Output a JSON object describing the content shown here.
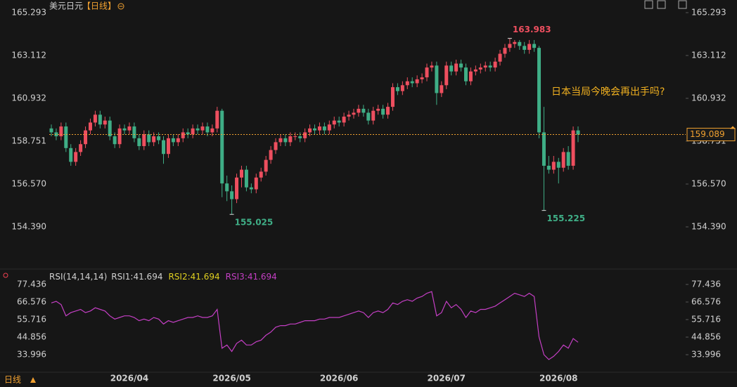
{
  "chart_data": {
    "type": "candlestick",
    "title": "美元日元",
    "period": "【日线】",
    "annotation": "日本当局今晚会再出手吗?",
    "bottom_label": "日线",
    "rsi_labels": {
      "params": "RSI(14,14,14)",
      "rsi1": "RSI1:41.694",
      "rsi2": "RSI2:41.694",
      "rsi3": "RSI3:41.694"
    },
    "up_color": "#ee4f5f",
    "down_color": "#3fae86",
    "price_line_color": "#f0a030",
    "categories": [
      null,
      null,
      null,
      null,
      null,
      null,
      null,
      null,
      null,
      null,
      null,
      null,
      null,
      null,
      null,
      null,
      "2026/04",
      null,
      null,
      null,
      null,
      null,
      null,
      null,
      null,
      null,
      null,
      null,
      null,
      null,
      null,
      null,
      null,
      null,
      null,
      null,
      null,
      "2026/05",
      null,
      null,
      null,
      null,
      null,
      null,
      null,
      null,
      null,
      null,
      null,
      null,
      null,
      null,
      null,
      null,
      null,
      null,
      null,
      null,
      null,
      "2026/06",
      null,
      null,
      null,
      null,
      null,
      null,
      null,
      null,
      null,
      null,
      null,
      null,
      null,
      null,
      null,
      null,
      null,
      null,
      null,
      null,
      null,
      "2026/07",
      null,
      null,
      null,
      null,
      null,
      null,
      null,
      null,
      null,
      null,
      null,
      null,
      null,
      null,
      null,
      null,
      null,
      null,
      null,
      null,
      null,
      null,
      "2026/08",
      null,
      null,
      null,
      null
    ],
    "open": [
      159.4,
      159.2,
      159.0,
      159.5,
      158.4,
      157.7,
      158.2,
      158.6,
      159.3,
      159.7,
      160.1,
      159.6,
      159.8,
      159.0,
      158.6,
      159.4,
      159.3,
      159.5,
      158.9,
      158.5,
      159.1,
      158.7,
      159.0,
      158.8,
      158.1,
      158.9,
      158.7,
      158.9,
      159.2,
      159.1,
      159.4,
      159.3,
      159.5,
      159.2,
      159.4,
      160.3,
      156.6,
      156.2,
      155.8,
      156.9,
      157.3,
      156.4,
      156.3,
      156.9,
      157.2,
      157.8,
      158.3,
      158.7,
      158.9,
      158.7,
      159.0,
      159.0,
      158.9,
      159.2,
      159.4,
      159.3,
      159.5,
      159.3,
      159.6,
      159.8,
      159.7,
      160.0,
      160.1,
      160.2,
      160.4,
      160.2,
      159.8,
      160.3,
      160.4,
      160.1,
      160.5,
      161.5,
      161.3,
      161.6,
      161.8,
      161.7,
      161.9,
      162.0,
      162.5,
      162.6,
      161.2,
      161.6,
      162.6,
      162.3,
      162.7,
      162.5,
      161.8,
      162.3,
      162.4,
      162.5,
      162.6,
      162.5,
      162.8,
      163.2,
      163.5,
      163.7,
      163.8,
      163.6,
      163.4,
      163.7,
      163.5,
      159.2,
      157.5,
      157.3,
      157.7,
      157.4,
      158.2,
      157.5,
      159.3
    ],
    "high": [
      159.6,
      159.4,
      159.7,
      159.7,
      158.6,
      158.4,
      158.8,
      159.5,
      159.9,
      160.3,
      160.3,
      160.0,
      160.0,
      159.2,
      159.6,
      159.6,
      159.7,
      159.7,
      159.1,
      159.3,
      159.3,
      159.2,
      159.2,
      159.0,
      159.1,
      159.1,
      159.1,
      159.4,
      159.4,
      159.6,
      159.6,
      159.7,
      159.7,
      159.6,
      160.5,
      160.4,
      157.0,
      156.5,
      157.1,
      157.5,
      157.5,
      156.6,
      157.1,
      157.4,
      158.0,
      158.5,
      158.9,
      159.1,
      159.1,
      159.2,
      159.2,
      159.2,
      159.4,
      159.6,
      159.6,
      159.7,
      159.7,
      159.8,
      160.0,
      160.0,
      160.2,
      160.3,
      160.4,
      160.6,
      160.6,
      160.4,
      160.5,
      160.6,
      160.6,
      160.7,
      161.7,
      161.7,
      161.8,
      162.0,
      162.0,
      162.1,
      162.2,
      162.7,
      162.8,
      162.8,
      161.8,
      162.8,
      162.8,
      162.9,
      162.9,
      162.7,
      162.5,
      162.6,
      162.7,
      162.8,
      162.8,
      163.0,
      163.4,
      163.7,
      163.983,
      163.9,
      163.9,
      163.8,
      163.9,
      163.9,
      163.6,
      160.5,
      158.0,
      158.0,
      157.9,
      158.4,
      158.5,
      159.5,
      159.5
    ],
    "low": [
      159.0,
      158.8,
      158.8,
      158.2,
      157.5,
      157.5,
      158.0,
      158.4,
      159.1,
      159.5,
      159.4,
      159.4,
      158.8,
      158.4,
      158.4,
      159.1,
      159.1,
      158.7,
      158.3,
      158.3,
      158.5,
      158.5,
      158.6,
      157.6,
      157.9,
      158.5,
      158.5,
      158.7,
      158.9,
      158.9,
      159.1,
      159.1,
      159.0,
      159.0,
      159.2,
      155.9,
      155.7,
      155.025,
      155.6,
      156.4,
      156.2,
      156.1,
      156.1,
      156.7,
      157.0,
      157.6,
      158.1,
      158.5,
      158.5,
      158.5,
      158.8,
      158.7,
      158.7,
      159.0,
      159.1,
      159.1,
      159.1,
      159.1,
      159.4,
      159.5,
      159.5,
      159.8,
      159.9,
      160.0,
      160.0,
      159.6,
      159.6,
      160.1,
      159.9,
      159.9,
      160.3,
      161.1,
      161.1,
      161.4,
      161.5,
      161.5,
      161.7,
      161.8,
      162.3,
      160.6,
      161.0,
      161.4,
      162.1,
      162.1,
      162.3,
      161.6,
      161.6,
      162.1,
      162.2,
      162.3,
      162.3,
      162.3,
      162.6,
      163.0,
      163.3,
      163.5,
      163.4,
      163.2,
      163.2,
      163.3,
      158.9,
      155.225,
      157.1,
      157.1,
      156.6,
      157.2,
      157.3,
      157.3,
      158.7
    ],
    "close": [
      159.2,
      159.0,
      159.5,
      158.4,
      157.7,
      158.2,
      158.6,
      159.3,
      159.7,
      160.1,
      159.6,
      159.8,
      159.0,
      158.6,
      159.4,
      159.3,
      159.5,
      158.9,
      158.5,
      159.1,
      158.7,
      159.0,
      158.8,
      158.1,
      158.9,
      158.7,
      158.9,
      159.2,
      159.1,
      159.4,
      159.3,
      159.5,
      159.2,
      159.4,
      160.3,
      156.6,
      156.2,
      155.8,
      156.9,
      157.3,
      156.4,
      156.3,
      156.9,
      157.2,
      157.8,
      158.3,
      158.7,
      158.9,
      158.7,
      159.0,
      159.0,
      158.9,
      159.2,
      159.4,
      159.3,
      159.5,
      159.3,
      159.6,
      159.8,
      159.7,
      160.0,
      160.1,
      160.2,
      160.4,
      160.2,
      159.8,
      160.3,
      160.4,
      160.1,
      160.5,
      161.5,
      161.3,
      161.6,
      161.8,
      161.7,
      161.9,
      162.0,
      162.5,
      162.6,
      161.2,
      161.6,
      162.6,
      162.3,
      162.7,
      162.5,
      161.8,
      162.3,
      162.4,
      162.5,
      162.6,
      162.5,
      162.8,
      163.2,
      163.5,
      163.7,
      163.8,
      163.6,
      163.4,
      163.7,
      163.5,
      159.2,
      157.5,
      157.3,
      157.7,
      157.4,
      158.2,
      157.5,
      159.3,
      159.089
    ],
    "ylim": [
      154.39,
      165.293
    ],
    "yticks": [
      165.293,
      163.112,
      160.932,
      158.751,
      {
        "value": 156.57,
        "label": "156.570"
      },
      {
        "value": 154.39,
        "label": "154.390"
      }
    ],
    "rsi": {
      "color": "#c43fc4",
      "values": [
        66,
        67,
        65,
        58,
        60,
        61,
        62,
        60,
        61,
        63,
        62,
        61,
        58,
        56,
        57,
        58,
        58,
        57,
        55,
        56,
        55,
        57,
        56,
        53,
        55,
        54,
        55,
        56,
        57,
        57,
        58,
        57,
        57,
        58,
        62,
        38,
        40,
        36,
        41,
        43,
        40,
        40,
        42,
        43,
        46,
        48,
        51,
        52,
        52,
        53,
        53,
        54,
        55,
        55,
        55,
        56,
        56,
        57,
        57,
        57,
        58,
        59,
        60,
        61,
        60,
        57,
        60,
        61,
        60,
        62,
        66,
        65,
        67,
        68,
        67,
        69,
        70,
        72,
        73,
        58,
        60,
        67,
        63,
        65,
        62,
        57,
        61,
        60,
        62,
        62,
        63,
        64,
        66,
        68,
        70,
        72,
        71,
        70,
        72,
        70,
        45,
        34,
        31,
        33,
        36,
        40,
        38,
        44,
        41.694
      ],
      "ylim": [
        33.996,
        77.436
      ],
      "yticks": [
        77.436,
        66.576,
        55.716,
        44.856,
        33.996
      ]
    }
  }
}
